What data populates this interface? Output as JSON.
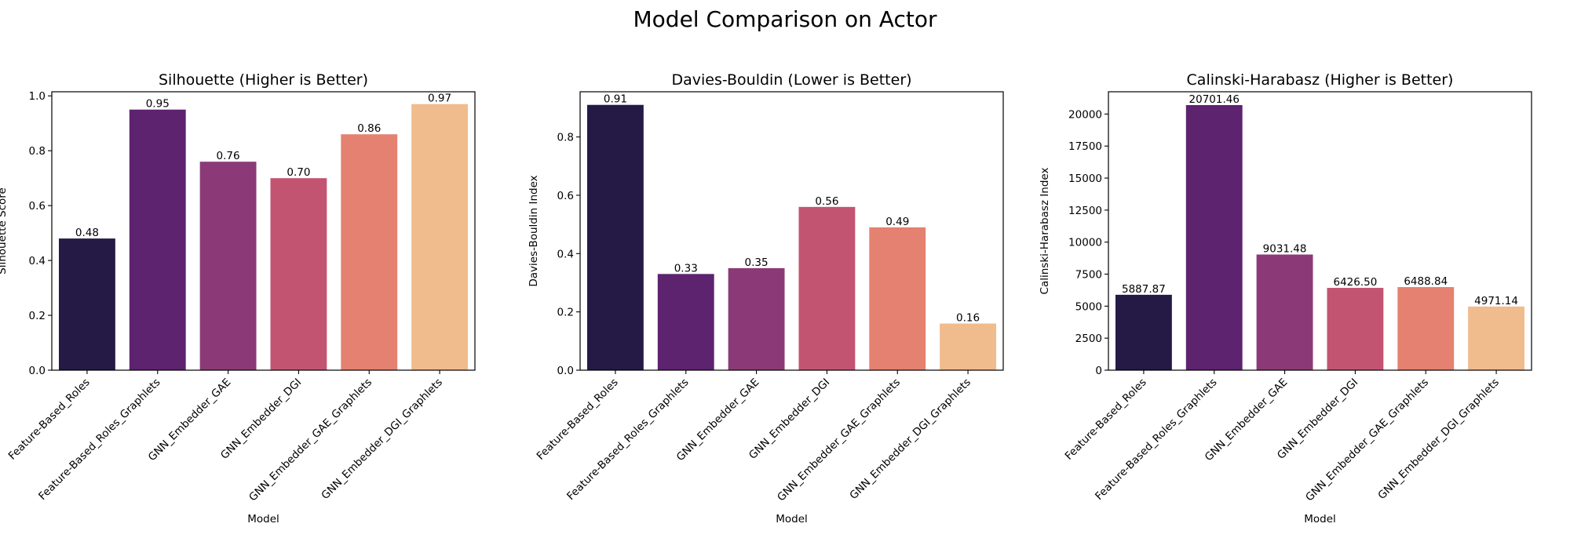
{
  "figure": {
    "title": "Model Comparison on Actor"
  },
  "chart_data": [
    {
      "type": "bar",
      "title": "Silhouette (Higher is Better)",
      "xlabel": "Model",
      "ylabel": "Silhouette Score",
      "categories": [
        "Feature-Based_Roles",
        "Feature-Based_Roles_Graphlets",
        "GNN_Embedder_GAE",
        "GNN_Embedder_DGI",
        "GNN_Embedder_GAE_Graphlets",
        "GNN_Embedder_DGI_Graphlets"
      ],
      "values": [
        0.48,
        0.95,
        0.76,
        0.7,
        0.86,
        0.97
      ],
      "value_labels": [
        "0.48",
        "0.95",
        "0.76",
        "0.70",
        "0.86",
        "0.97"
      ],
      "ylim": [
        0,
        1.015
      ],
      "yticks": [
        0.0,
        0.2,
        0.4,
        0.6,
        0.8,
        1.0
      ],
      "ytick_labels": [
        "0.0",
        "0.2",
        "0.4",
        "0.6",
        "0.8",
        "1.0"
      ],
      "colors": [
        "#251a45",
        "#5d236f",
        "#8b3a77",
        "#c25472",
        "#e58170",
        "#f0bb8d"
      ],
      "grid": false
    },
    {
      "type": "bar",
      "title": "Davies-Bouldin (Lower is Better)",
      "xlabel": "Model",
      "ylabel": "Davies-Bouldin Index",
      "categories": [
        "Feature-Based_Roles",
        "Feature-Based_Roles_Graphlets",
        "GNN_Embedder_GAE",
        "GNN_Embedder_DGI",
        "GNN_Embedder_GAE_Graphlets",
        "GNN_Embedder_DGI_Graphlets"
      ],
      "values": [
        0.91,
        0.33,
        0.35,
        0.56,
        0.49,
        0.16
      ],
      "value_labels": [
        "0.91",
        "0.33",
        "0.35",
        "0.56",
        "0.49",
        "0.16"
      ],
      "ylim": [
        0,
        0.955
      ],
      "yticks": [
        0.0,
        0.2,
        0.4,
        0.6,
        0.8
      ],
      "ytick_labels": [
        "0.0",
        "0.2",
        "0.4",
        "0.6",
        "0.8"
      ],
      "colors": [
        "#251a45",
        "#5d236f",
        "#8b3a77",
        "#c25472",
        "#e58170",
        "#f0bb8d"
      ],
      "grid": false
    },
    {
      "type": "bar",
      "title": "Calinski-Harabasz (Higher is Better)",
      "xlabel": "Model",
      "ylabel": "Calinski-Harabasz Index",
      "categories": [
        "Feature-Based_Roles",
        "Feature-Based_Roles_Graphlets",
        "GNN_Embedder_GAE",
        "GNN_Embedder_DGI",
        "GNN_Embedder_GAE_Graphlets",
        "GNN_Embedder_DGI_Graphlets"
      ],
      "values": [
        5887.87,
        20701.46,
        9031.48,
        6426.5,
        6488.84,
        4971.14
      ],
      "value_labels": [
        "5887.87",
        "20701.46",
        "9031.48",
        "6426.50",
        "6488.84",
        "4971.14"
      ],
      "ylim": [
        0,
        21740
      ],
      "yticks": [
        0,
        2500,
        5000,
        7500,
        10000,
        12500,
        15000,
        17500,
        20000
      ],
      "ytick_labels": [
        "0",
        "2500",
        "5000",
        "7500",
        "10000",
        "12500",
        "15000",
        "17500",
        "20000"
      ],
      "colors": [
        "#251a45",
        "#5d236f",
        "#8b3a77",
        "#c25472",
        "#e58170",
        "#f0bb8d"
      ],
      "grid": false
    }
  ]
}
